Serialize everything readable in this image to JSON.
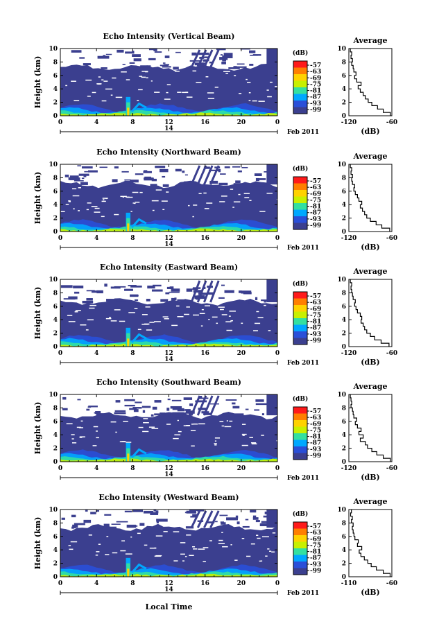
{
  "figure": {
    "xlabel": "Local Time",
    "colorbar_unit": "(dB)",
    "colorbar_ticks": [
      "-57",
      "-63",
      "-69",
      "-75",
      "-81",
      "-87",
      "-93",
      "-99"
    ],
    "colorbar_colors": [
      "#ff1a1a",
      "#ff7f00",
      "#ffd200",
      "#c8f000",
      "#33e0a0",
      "#00a8ff",
      "#2a4fd8",
      "#3b3f8f"
    ],
    "background_color": "#3b3f8f",
    "profile_title": "Average",
    "profile_xlabel": "(dB)",
    "date_day": "14",
    "date_label": "Feb 2011"
  },
  "chart_data": [
    {
      "type": "heatmap",
      "title": "Echo Intensity (Vertical Beam)",
      "xlabel": "Local Time",
      "ylabel": "Height (km)",
      "xlim": [
        0,
        24
      ],
      "ylim": [
        0,
        10
      ],
      "xticks": [
        "0",
        "4",
        "8",
        "12",
        "16",
        "20",
        "0"
      ],
      "yticks": [
        "0",
        "2",
        "4",
        "6",
        "8",
        "10"
      ],
      "echo_top_km": 7.2,
      "event_time_h": 7.5,
      "profile": {
        "xticks": [
          "-120",
          "-60"
        ],
        "xlim": [
          -120,
          -60
        ],
        "height_km": [
          0,
          0.5,
          1,
          1.5,
          2,
          2.5,
          3,
          3.5,
          4,
          4.5,
          5,
          5.5,
          6,
          6.5,
          7,
          7.5,
          8,
          8.5,
          9,
          9.5
        ],
        "db": [
          -62,
          -72,
          -80,
          -88,
          -93,
          -97,
          -100,
          -104,
          -107,
          -103,
          -109,
          -112,
          -110,
          -113,
          -114,
          -116,
          -115,
          -117,
          -116,
          -118
        ]
      }
    },
    {
      "type": "heatmap",
      "title": "Echo Intensity (Northward Beam)",
      "xlabel": "Local Time",
      "ylabel": "Height (km)",
      "xlim": [
        0,
        24
      ],
      "ylim": [
        0,
        10
      ],
      "xticks": [
        "0",
        "4",
        "8",
        "12",
        "16",
        "20",
        "0"
      ],
      "yticks": [
        "0",
        "2",
        "4",
        "6",
        "8",
        "10"
      ],
      "echo_top_km": 7.0,
      "event_time_h": 7.5,
      "profile": {
        "xticks": [
          "-120",
          "-60"
        ],
        "xlim": [
          -120,
          -60
        ],
        "height_km": [
          0,
          0.5,
          1,
          1.5,
          2,
          2.5,
          3,
          3.5,
          4,
          4.5,
          5,
          5.5,
          6,
          6.5,
          7,
          7.5,
          8,
          8.5,
          9,
          9.5
        ],
        "db": [
          -63,
          -74,
          -82,
          -90,
          -95,
          -98,
          -101,
          -104,
          -102,
          -106,
          -108,
          -111,
          -113,
          -112,
          -115,
          -116,
          -115,
          -117,
          -116,
          -118
        ]
      }
    },
    {
      "type": "heatmap",
      "title": "Echo Intensity (Eastward Beam)",
      "xlabel": "Local Time",
      "ylabel": "Height (km)",
      "xlim": [
        0,
        24
      ],
      "ylim": [
        0,
        10
      ],
      "xticks": [
        "0",
        "4",
        "8",
        "12",
        "16",
        "20",
        "0"
      ],
      "yticks": [
        "0",
        "2",
        "4",
        "6",
        "8",
        "10"
      ],
      "echo_top_km": 6.6,
      "event_time_h": 7.5,
      "profile": {
        "xticks": [
          "-120",
          "-60"
        ],
        "xlim": [
          -120,
          -60
        ],
        "height_km": [
          0,
          0.5,
          1,
          1.5,
          2,
          2.5,
          3,
          3.5,
          4,
          4.5,
          5,
          5.5,
          6,
          6.5,
          7,
          7.5,
          8,
          8.5,
          9,
          9.5
        ],
        "db": [
          -64,
          -75,
          -84,
          -90,
          -95,
          -98,
          -100,
          -103,
          -102,
          -104,
          -108,
          -110,
          -112,
          -111,
          -114,
          -115,
          -116,
          -117,
          -116,
          -118
        ]
      }
    },
    {
      "type": "heatmap",
      "title": "Echo Intensity (Southward Beam)",
      "xlabel": "Local Time",
      "ylabel": "Height (km)",
      "xlim": [
        0,
        24
      ],
      "ylim": [
        0,
        10
      ],
      "xticks": [
        "0",
        "4",
        "8",
        "12",
        "16",
        "20",
        "0"
      ],
      "yticks": [
        "0",
        "2",
        "4",
        "6",
        "8",
        "10"
      ],
      "echo_top_km": 6.9,
      "event_time_h": 7.5,
      "profile": {
        "xticks": [
          "-120",
          "-60"
        ],
        "xlim": [
          -120,
          -60
        ],
        "height_km": [
          0,
          0.5,
          1,
          1.5,
          2,
          2.5,
          3,
          3.5,
          4,
          4.5,
          5,
          5.5,
          6,
          6.5,
          7,
          7.5,
          8,
          8.5,
          9,
          9.5
        ],
        "db": [
          -62,
          -72,
          -81,
          -88,
          -94,
          -97,
          -104,
          -100,
          -106,
          -103,
          -108,
          -111,
          -109,
          -113,
          -114,
          -115,
          -117,
          -116,
          -117,
          -118
        ]
      }
    },
    {
      "type": "heatmap",
      "title": "Echo Intensity (Westward Beam)",
      "xlabel": "Local Time",
      "ylabel": "Height (km)",
      "xlim": [
        0,
        24
      ],
      "ylim": [
        0,
        10
      ],
      "xticks": [
        "0",
        "4",
        "8",
        "12",
        "16",
        "20",
        "0"
      ],
      "yticks": [
        "0",
        "2",
        "4",
        "6",
        "8",
        "10"
      ],
      "echo_top_km": 7.3,
      "event_time_h": 7.5,
      "profile": {
        "xticks": [
          "-110",
          "-60"
        ],
        "xlim": [
          -110,
          -60
        ],
        "height_km": [
          0,
          0.5,
          1,
          1.5,
          2,
          2.5,
          3,
          3.5,
          4,
          4.5,
          5,
          5.5,
          6,
          6.5,
          7,
          7.5,
          8,
          8.5,
          9,
          9.5
        ],
        "db": [
          -62,
          -70,
          -78,
          -84,
          -88,
          -92,
          -96,
          -98,
          -95,
          -100,
          -99,
          -103,
          -104,
          -105,
          -106,
          -105,
          -107,
          -106,
          -108,
          -107
        ]
      }
    }
  ]
}
